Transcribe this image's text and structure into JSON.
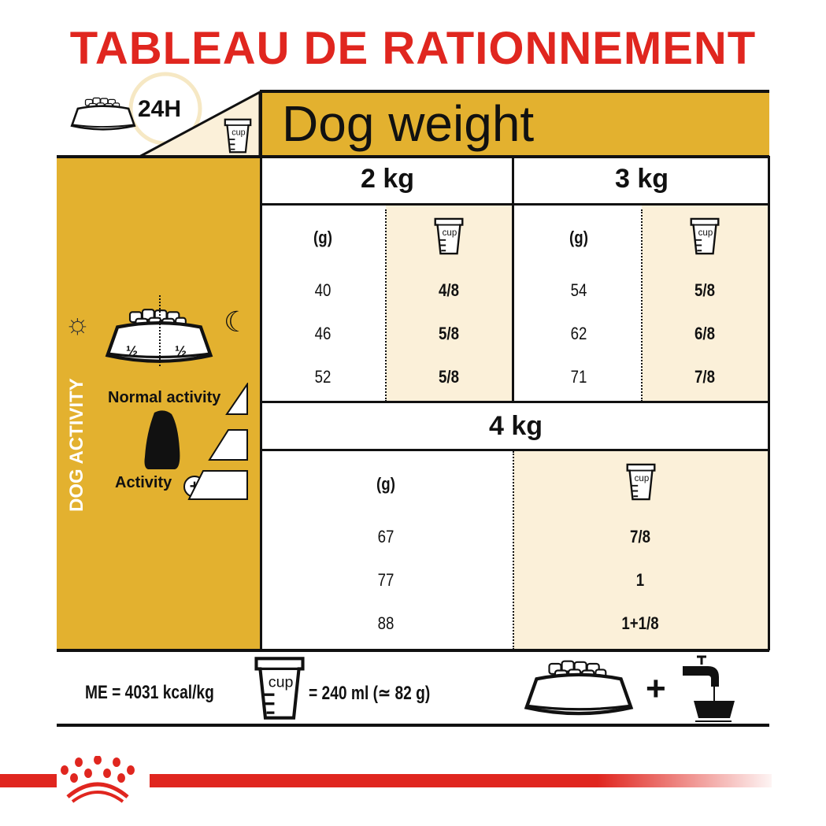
{
  "title": "TABLEAU DE RATIONNEMENT",
  "header": {
    "period": "24H",
    "dog_weight_label": "Dog weight",
    "cup_label": "cup"
  },
  "sidebar": {
    "vertical_label": "DOG ACTIVITY",
    "half_left": "½",
    "half_right": "½",
    "normal_activity": "Normal activity",
    "activity_plus": "Activity"
  },
  "columns": {
    "grams": "(g)",
    "cup": "cup"
  },
  "weights": [
    {
      "label": "2 kg",
      "grams": [
        "40",
        "46",
        "52"
      ],
      "cups": [
        "4/8",
        "5/8",
        "5/8"
      ]
    },
    {
      "label": "3 kg",
      "grams": [
        "54",
        "62",
        "71"
      ],
      "cups": [
        "5/8",
        "6/8",
        "7/8"
      ]
    },
    {
      "label": "4 kg",
      "grams": [
        "67",
        "77",
        "88"
      ],
      "cups": [
        "7/8",
        "1",
        "1+1/8"
      ]
    }
  ],
  "footer": {
    "energy": "ME = 4031 kcal/kg",
    "cup_label": "cup",
    "cup_equiv": "= 240 ml (≃ 82 g)"
  },
  "colors": {
    "accent_red": "#E0261F",
    "yellow": "#E3B12F",
    "cream": "#FBF0D9"
  }
}
